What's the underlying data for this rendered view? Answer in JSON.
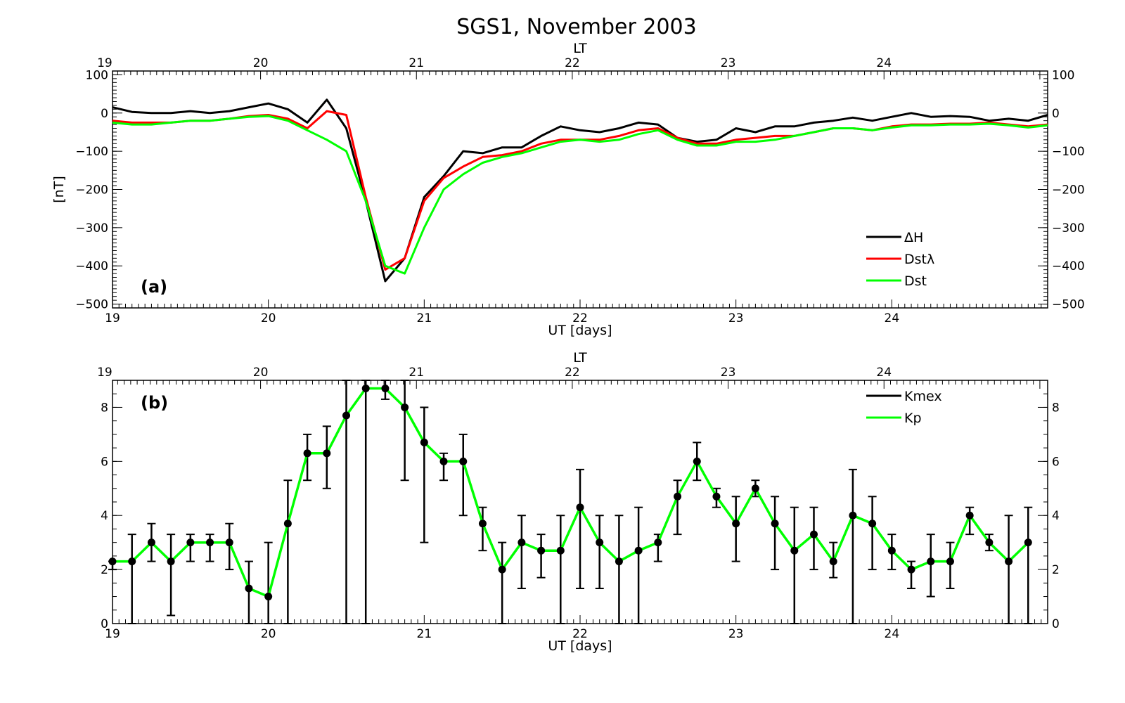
{
  "title": "SGS1, November 2003",
  "chart_data": [
    {
      "id": "a",
      "type": "line",
      "panel_label": "(a)",
      "xlabel": "UT [days]",
      "top_axis_label": "LT",
      "ylabel": "[nT]",
      "xlim": [
        19,
        25
      ],
      "ylim": [
        -510,
        110
      ],
      "x_ticks": [
        "19",
        "20",
        "21",
        "22",
        "23",
        "24"
      ],
      "top_ticks": [
        "19",
        "20",
        "21",
        "22",
        "23",
        "24"
      ],
      "y_ticks": [
        "100",
        "0",
        "−100",
        "−200",
        "−300",
        "−400",
        "−500"
      ],
      "y_tick_values": [
        100,
        0,
        -100,
        -200,
        -300,
        -400,
        -500
      ],
      "legend_position": "bottom-right",
      "colors": {
        "dH": "#000000",
        "DstL": "#ff0000",
        "Dst": "#00ff00"
      },
      "series": [
        {
          "key": "dH",
          "name": "ΔH",
          "color": "#000000",
          "x": [
            19.0,
            19.125,
            19.25,
            19.375,
            19.5,
            19.625,
            19.75,
            19.875,
            20.0,
            20.125,
            20.25,
            20.375,
            20.5,
            20.625,
            20.75,
            20.875,
            21.0,
            21.125,
            21.25,
            21.375,
            21.5,
            21.625,
            21.75,
            21.875,
            22.0,
            22.125,
            22.25,
            22.375,
            22.5,
            22.625,
            22.75,
            22.875,
            23.0,
            23.125,
            23.25,
            23.375,
            23.5,
            23.625,
            23.75,
            23.875,
            24.0,
            24.125,
            24.25,
            24.375,
            24.5,
            24.625,
            24.75,
            24.875,
            25.0
          ],
          "values": [
            15,
            3,
            0,
            0,
            5,
            0,
            5,
            15,
            25,
            10,
            -25,
            35,
            -40,
            -230,
            -440,
            -380,
            -220,
            -165,
            -100,
            -105,
            -90,
            -90,
            -60,
            -35,
            -45,
            -50,
            -40,
            -25,
            -30,
            -65,
            -75,
            -70,
            -40,
            -50,
            -35,
            -35,
            -25,
            -20,
            -12,
            -20,
            -10,
            0,
            -10,
            -8,
            -10,
            -20,
            -15,
            -20,
            -5
          ]
        },
        {
          "key": "DstL",
          "name": "Dstλ",
          "color": "#ff0000",
          "x": [
            19.0,
            19.125,
            19.25,
            19.375,
            19.5,
            19.625,
            19.75,
            19.875,
            20.0,
            20.125,
            20.25,
            20.375,
            20.5,
            20.625,
            20.75,
            20.875,
            21.0,
            21.125,
            21.25,
            21.375,
            21.5,
            21.625,
            21.75,
            21.875,
            22.0,
            22.125,
            22.25,
            22.375,
            22.5,
            22.625,
            22.75,
            22.875,
            23.0,
            23.125,
            23.25,
            23.375,
            23.5,
            23.625,
            23.75,
            23.875,
            24.0,
            24.125,
            24.25,
            24.375,
            24.5,
            24.625,
            24.75,
            24.875,
            25.0
          ],
          "values": [
            -20,
            -25,
            -25,
            -25,
            -20,
            -20,
            -15,
            -8,
            -5,
            -15,
            -40,
            5,
            -5,
            -220,
            -410,
            -380,
            -230,
            -170,
            -140,
            -115,
            -110,
            -100,
            -80,
            -70,
            -70,
            -70,
            -60,
            -45,
            -40,
            -65,
            -80,
            -80,
            -70,
            -65,
            -60,
            -60,
            -50,
            -40,
            -40,
            -45,
            -35,
            -30,
            -30,
            -28,
            -28,
            -25,
            -30,
            -35,
            -30
          ]
        },
        {
          "key": "Dst",
          "name": "Dst",
          "color": "#00ff00",
          "x": [
            19.0,
            19.125,
            19.25,
            19.375,
            19.5,
            19.625,
            19.75,
            19.875,
            20.0,
            20.125,
            20.25,
            20.375,
            20.5,
            20.625,
            20.75,
            20.875,
            21.0,
            21.125,
            21.25,
            21.375,
            21.5,
            21.625,
            21.75,
            21.875,
            22.0,
            22.125,
            22.25,
            22.375,
            22.5,
            22.625,
            22.75,
            22.875,
            23.0,
            23.125,
            23.25,
            23.375,
            23.5,
            23.625,
            23.75,
            23.875,
            24.0,
            24.125,
            24.25,
            24.375,
            24.5,
            24.625,
            24.75,
            24.875,
            25.0
          ],
          "values": [
            -25,
            -30,
            -30,
            -25,
            -20,
            -20,
            -15,
            -10,
            -8,
            -20,
            -45,
            -70,
            -100,
            -230,
            -400,
            -420,
            -300,
            -200,
            -160,
            -130,
            -115,
            -105,
            -90,
            -75,
            -70,
            -75,
            -70,
            -55,
            -45,
            -70,
            -85,
            -85,
            -75,
            -75,
            -70,
            -60,
            -50,
            -40,
            -40,
            -45,
            -38,
            -32,
            -32,
            -30,
            -30,
            -28,
            -32,
            -38,
            -32
          ]
        }
      ]
    },
    {
      "id": "b",
      "type": "line",
      "panel_label": "(b)",
      "xlabel": "UT [days]",
      "top_axis_label": "LT",
      "ylabel": "",
      "xlim": [
        19,
        25
      ],
      "ylim": [
        0,
        9
      ],
      "x_ticks": [
        "19",
        "20",
        "21",
        "22",
        "23",
        "24"
      ],
      "top_ticks": [
        "19",
        "20",
        "21",
        "22",
        "23",
        "24"
      ],
      "y_ticks": [
        "0",
        "2",
        "4",
        "6",
        "8"
      ],
      "y_tick_values": [
        0,
        2,
        4,
        6,
        8
      ],
      "legend_position": "top-right",
      "colors": {
        "Kmex": "#000000",
        "Kp": "#00ff00"
      },
      "series": [
        {
          "key": "Kmex",
          "name": "Kmex",
          "color": "#000000",
          "x": [
            19.0,
            19.125,
            19.25,
            19.375,
            19.5,
            19.625,
            19.75,
            19.875,
            20.0,
            20.125,
            20.25,
            20.375,
            20.5,
            20.625,
            20.75,
            20.875,
            21.0,
            21.125,
            21.25,
            21.375,
            21.5,
            21.625,
            21.75,
            21.875,
            22.0,
            22.125,
            22.25,
            22.375,
            22.5,
            22.625,
            22.75,
            22.875,
            23.0,
            23.125,
            23.25,
            23.375,
            23.5,
            23.625,
            23.75,
            23.875,
            24.0,
            24.125,
            24.25,
            24.375,
            24.5,
            24.625,
            24.75,
            24.875
          ],
          "low": [
            2,
            0,
            2.3,
            0.3,
            2.3,
            2.3,
            2,
            0,
            0,
            0,
            5.3,
            5,
            0,
            0,
            8.3,
            5.3,
            3,
            5.3,
            4,
            2.7,
            0,
            1.3,
            1.7,
            0,
            1.3,
            1.3,
            0,
            0,
            2.3,
            3.3,
            5.3,
            4.3,
            2.3,
            4.7,
            2,
            0,
            2,
            1.7,
            0,
            2,
            2,
            1.3,
            1,
            1.3,
            3.3,
            2.7,
            0,
            0
          ],
          "high": [
            2.3,
            3.3,
            3.7,
            3.3,
            3.3,
            3.3,
            3.7,
            2.3,
            3,
            5.3,
            7,
            7.3,
            9,
            9,
            9,
            9,
            8,
            6.3,
            7,
            4.3,
            3,
            4,
            3.3,
            4,
            5.7,
            4,
            4,
            4.3,
            3.3,
            5.3,
            6.7,
            5,
            4.7,
            5.3,
            4.7,
            4.3,
            4.3,
            3,
            5.7,
            4.7,
            3.3,
            2.3,
            3.3,
            3,
            4.3,
            3.3,
            4,
            4.3
          ]
        },
        {
          "key": "Kp",
          "name": "Kp",
          "color": "#00ff00",
          "x": [
            19.0,
            19.125,
            19.25,
            19.375,
            19.5,
            19.625,
            19.75,
            19.875,
            20.0,
            20.125,
            20.25,
            20.375,
            20.5,
            20.625,
            20.75,
            20.875,
            21.0,
            21.125,
            21.25,
            21.375,
            21.5,
            21.625,
            21.75,
            21.875,
            22.0,
            22.125,
            22.25,
            22.375,
            22.5,
            22.625,
            22.75,
            22.875,
            23.0,
            23.125,
            23.25,
            23.375,
            23.5,
            23.625,
            23.75,
            23.875,
            24.0,
            24.125,
            24.25,
            24.375,
            24.5,
            24.625,
            24.75,
            24.875
          ],
          "values": [
            2.3,
            2.3,
            3,
            2.3,
            3,
            3,
            3,
            1.3,
            1,
            3.7,
            6.3,
            6.3,
            7.7,
            8.7,
            8.7,
            8,
            6.7,
            6,
            6,
            3.7,
            2,
            3,
            2.7,
            2.7,
            4.3,
            3,
            2.3,
            2.7,
            3,
            4.7,
            6,
            4.7,
            3.7,
            5,
            3.7,
            2.7,
            3.3,
            2.3,
            4,
            3.7,
            2.7,
            2,
            2.3,
            2.3,
            4,
            3,
            2.3,
            3
          ]
        }
      ]
    }
  ]
}
